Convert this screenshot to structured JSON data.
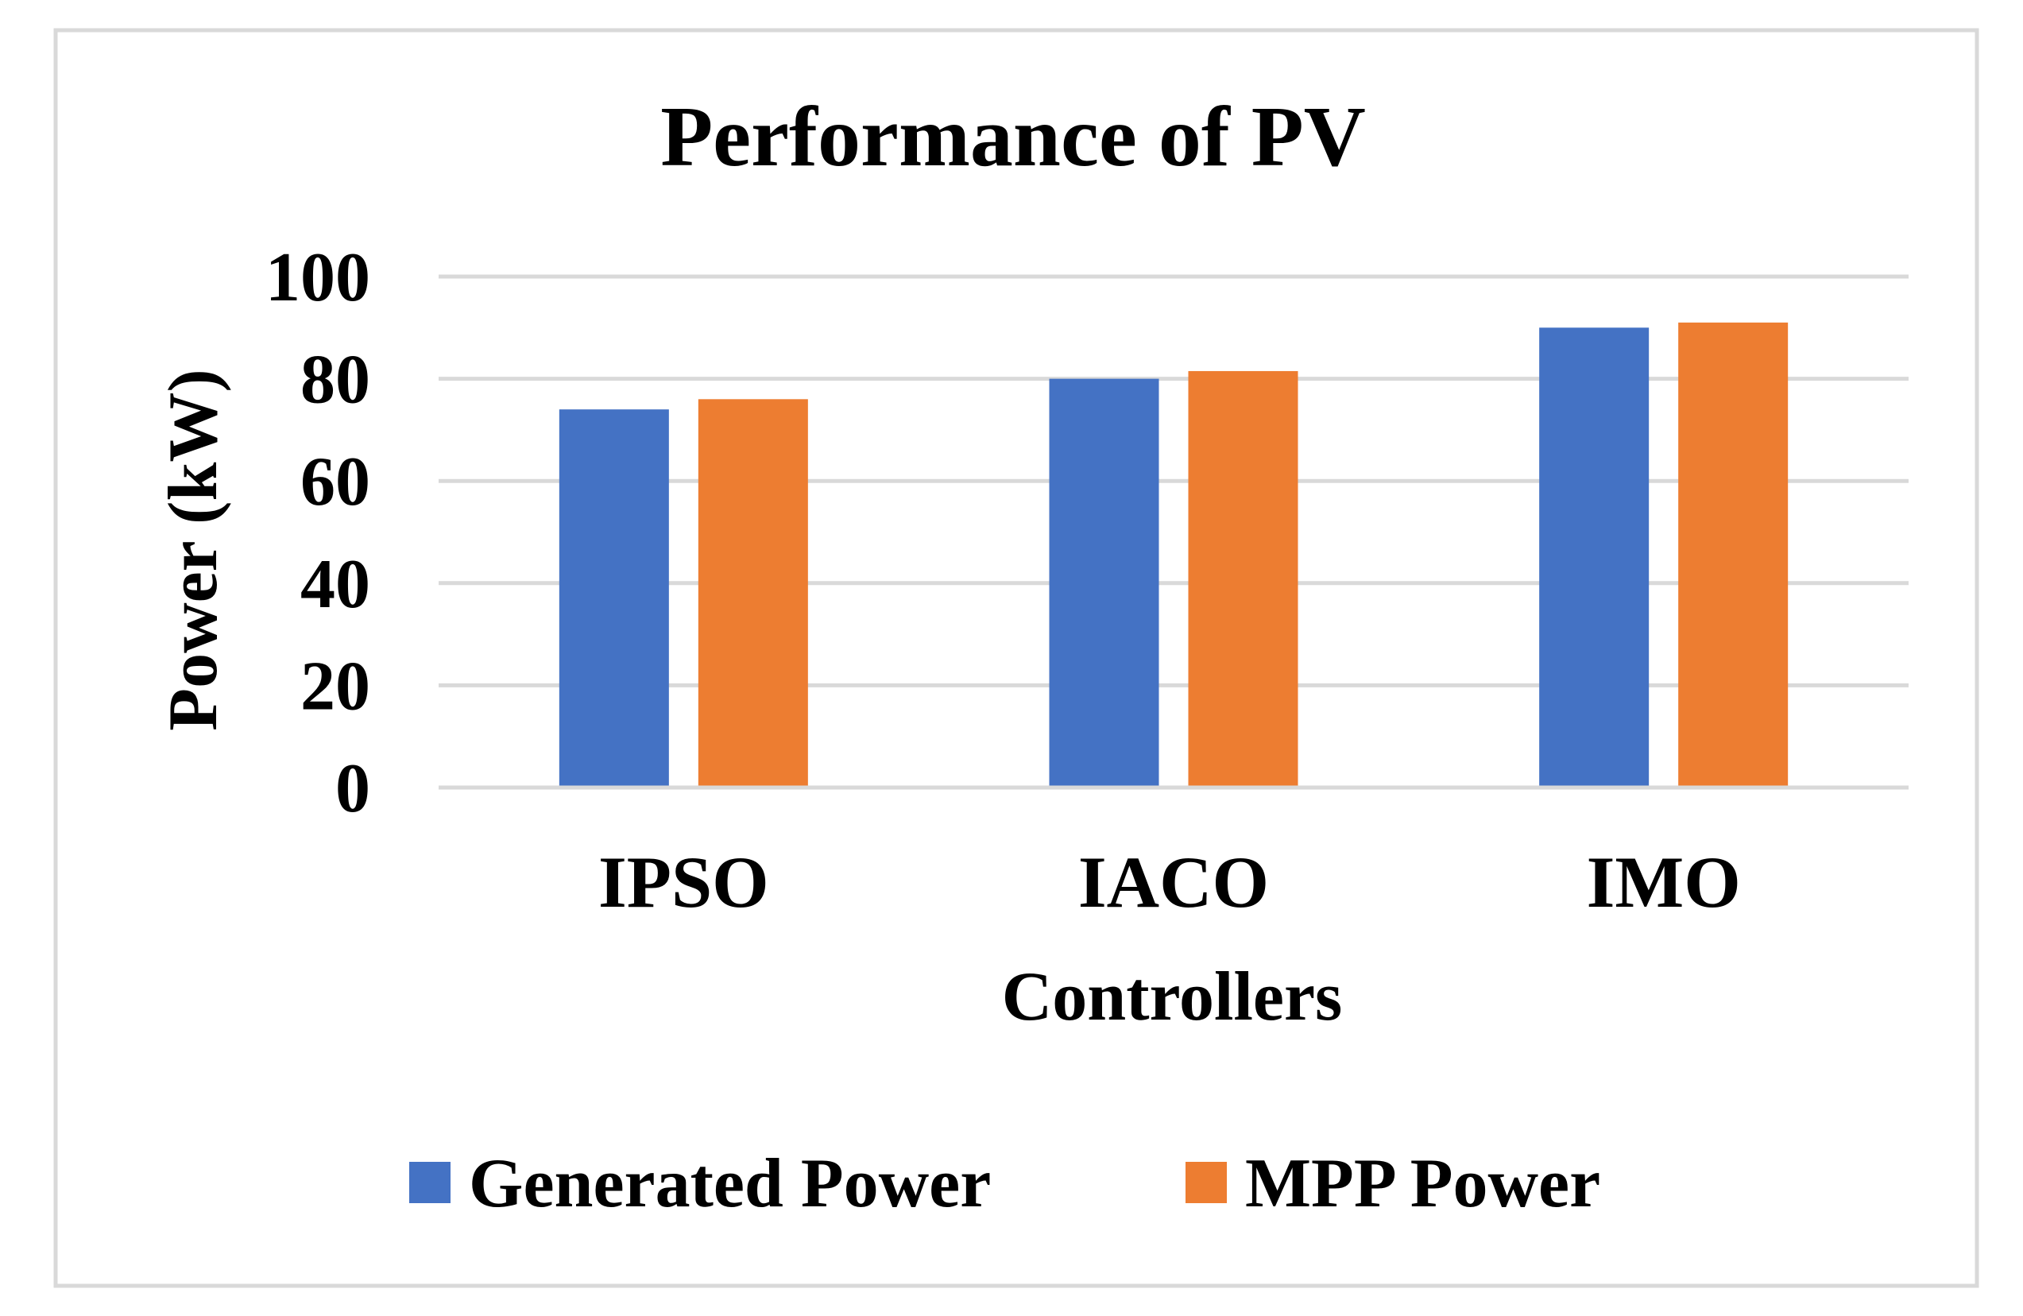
{
  "colors": {
    "background": "#ffffff",
    "frame": "#d9d9d9",
    "gridline": "#d9d9d9",
    "series_generated": "#4472c4",
    "series_mpp": "#ed7d31",
    "text": "#000000"
  },
  "chart_data": {
    "type": "bar",
    "title": "Performance of PV",
    "xlabel": "Controllers",
    "ylabel": "Power (kW)",
    "categories": [
      "IPSO",
      "IACO",
      "IMO"
    ],
    "series": [
      {
        "name": "Generated Power",
        "color": "#4472c4",
        "values": [
          74,
          80,
          90
        ]
      },
      {
        "name": "MPP Power",
        "color": "#ed7d31",
        "values": [
          76,
          81.5,
          91
        ]
      }
    ],
    "ylim": [
      0,
      100
    ],
    "yticks": [
      "0",
      "20",
      "40",
      "60",
      "80",
      "100"
    ],
    "grid": true,
    "legend": "bottom"
  }
}
